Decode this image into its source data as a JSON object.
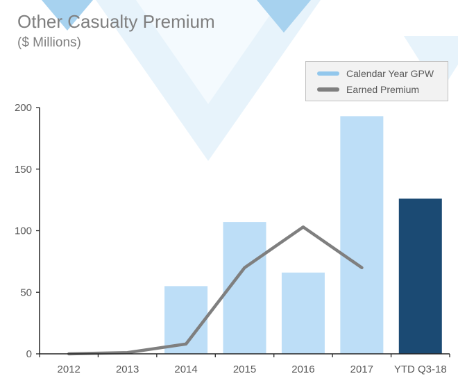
{
  "header": {
    "title": "Other Casualty Premium",
    "subtitle": "($ Millions)"
  },
  "legend": {
    "items": [
      {
        "label": "Calendar Year GPW",
        "color": "#92c7ec"
      },
      {
        "label": "Earned Premium",
        "color": "#7f7f7f"
      }
    ]
  },
  "chart_data": {
    "type": "bar",
    "title": "Other Casualty Premium",
    "subtitle": "($ Millions)",
    "categories": [
      "2012",
      "2013",
      "2014",
      "2015",
      "2016",
      "2017",
      "YTD Q3-18"
    ],
    "series": [
      {
        "name": "Calendar Year GPW",
        "type": "bar",
        "values": [
          0,
          0,
          55,
          107,
          66,
          193,
          126
        ]
      },
      {
        "name": "Earned Premium",
        "type": "line",
        "values": [
          0,
          1,
          8,
          70,
          103,
          70,
          null
        ]
      }
    ],
    "ylim": [
      0,
      200
    ],
    "yticks": [
      0,
      50,
      100,
      150,
      200
    ],
    "grid": false,
    "legend_position": "top-right",
    "highlight_index": 6,
    "colors": {
      "bar_default": "#bddef7",
      "bar_highlight": "#1b4a73",
      "line": "#7f7f7f",
      "axis": "#262626",
      "tick_text": "#595959",
      "title_text": "#7f7f7f"
    }
  }
}
